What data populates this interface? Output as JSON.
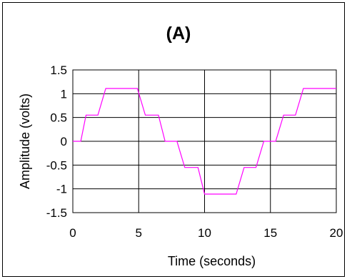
{
  "chart_data": {
    "type": "line",
    "title": "(A)",
    "xlabel": "Time (seconds)",
    "ylabel": "Amplitude (volts)",
    "xlim": [
      0,
      20
    ],
    "ylim": [
      -1.5,
      1.5
    ],
    "x_ticks": [
      0,
      5,
      10,
      15,
      20
    ],
    "y_ticks": [
      1.5,
      1,
      0.5,
      0,
      -0.5,
      -1,
      -1.5
    ],
    "x_tick_labels": [
      "0",
      "5",
      "10",
      "15",
      "20"
    ],
    "y_tick_labels": [
      "1.5",
      "1",
      "0.5",
      "0",
      "-0.5",
      "-1",
      "-1.5"
    ],
    "grid": true,
    "legend": "none",
    "colors": {
      "line": "#ff00ff",
      "grid": "#000000",
      "background": "#ffffff"
    },
    "series": [
      {
        "x": [
          0,
          0.6,
          1.0,
          1.9,
          2.5,
          4.9,
          5.5,
          6.5,
          7.0,
          7.9,
          8.5,
          9.5,
          10.0,
          12.4,
          13.0,
          13.9,
          14.5,
          15.4,
          16.0,
          16.9,
          17.5,
          20
        ],
        "y": [
          0,
          0,
          0.55,
          0.55,
          1.11,
          1.11,
          0.55,
          0.55,
          0,
          0,
          -0.55,
          -0.55,
          -1.11,
          -1.11,
          -0.55,
          -0.55,
          0,
          0,
          0.55,
          0.55,
          1.11,
          1.11
        ]
      }
    ]
  }
}
